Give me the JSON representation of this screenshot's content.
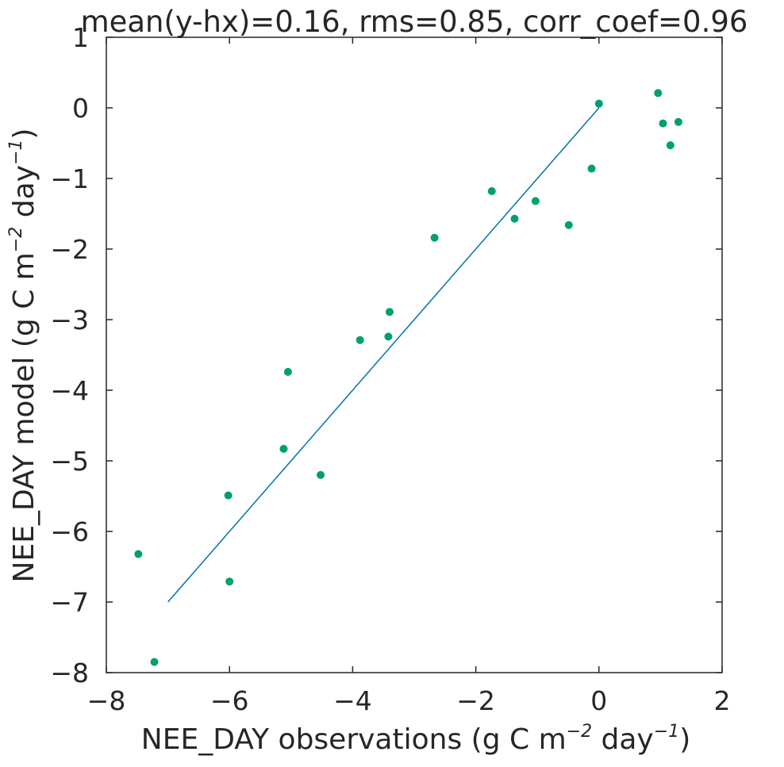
{
  "chart_data": {
    "type": "scatter",
    "title": "mean(y-hx)=0.16, rms=0.85, corr_coef=0.96",
    "xlabel": {
      "pre": "NEE_DAY observations (g C m",
      "exp1": "−2",
      "mid": " day",
      "exp2": "−1",
      "post": ")"
    },
    "ylabel": {
      "pre": "NEE_DAY model (g C m",
      "exp1": "−2",
      "mid": " day",
      "exp2": "−1",
      "post": ")"
    },
    "xlim": [
      -8,
      2
    ],
    "ylim": [
      -8,
      1
    ],
    "xticks": [
      -8,
      -6,
      -4,
      -2,
      0,
      2
    ],
    "yticks": [
      -8,
      -7,
      -6,
      -5,
      -4,
      -3,
      -2,
      -1,
      0,
      1
    ],
    "xtick_labels": [
      "−8",
      "−6",
      "−4",
      "−2",
      "0",
      "2"
    ],
    "ytick_labels": [
      "−8",
      "−7",
      "−6",
      "−5",
      "−4",
      "−3",
      "−2",
      "−1",
      "0",
      "1"
    ],
    "grid": false,
    "colors": {
      "points": "#009e73",
      "line": "#0072b2",
      "axes": "#262626"
    },
    "reference_line": {
      "x": [
        -7.0,
        0.0
      ],
      "y": [
        -7.0,
        0.0
      ]
    },
    "points": [
      {
        "x": -7.48,
        "y": -6.32
      },
      {
        "x": -7.22,
        "y": -7.85
      },
      {
        "x": -6.02,
        "y": -5.49
      },
      {
        "x": -6.0,
        "y": -6.71
      },
      {
        "x": -5.12,
        "y": -4.83
      },
      {
        "x": -5.05,
        "y": -3.74
      },
      {
        "x": -4.52,
        "y": -5.2
      },
      {
        "x": -3.88,
        "y": -3.29
      },
      {
        "x": -3.42,
        "y": -3.24
      },
      {
        "x": -3.4,
        "y": -2.89
      },
      {
        "x": -2.67,
        "y": -1.84
      },
      {
        "x": -1.74,
        "y": -1.18
      },
      {
        "x": -1.37,
        "y": -1.57
      },
      {
        "x": -1.03,
        "y": -1.32
      },
      {
        "x": -0.49,
        "y": -1.66
      },
      {
        "x": -0.12,
        "y": -0.86
      },
      {
        "x": 0.0,
        "y": 0.06
      },
      {
        "x": 0.96,
        "y": 0.21
      },
      {
        "x": 1.04,
        "y": -0.22
      },
      {
        "x": 1.16,
        "y": -0.53
      },
      {
        "x": 1.29,
        "y": -0.2
      }
    ]
  }
}
